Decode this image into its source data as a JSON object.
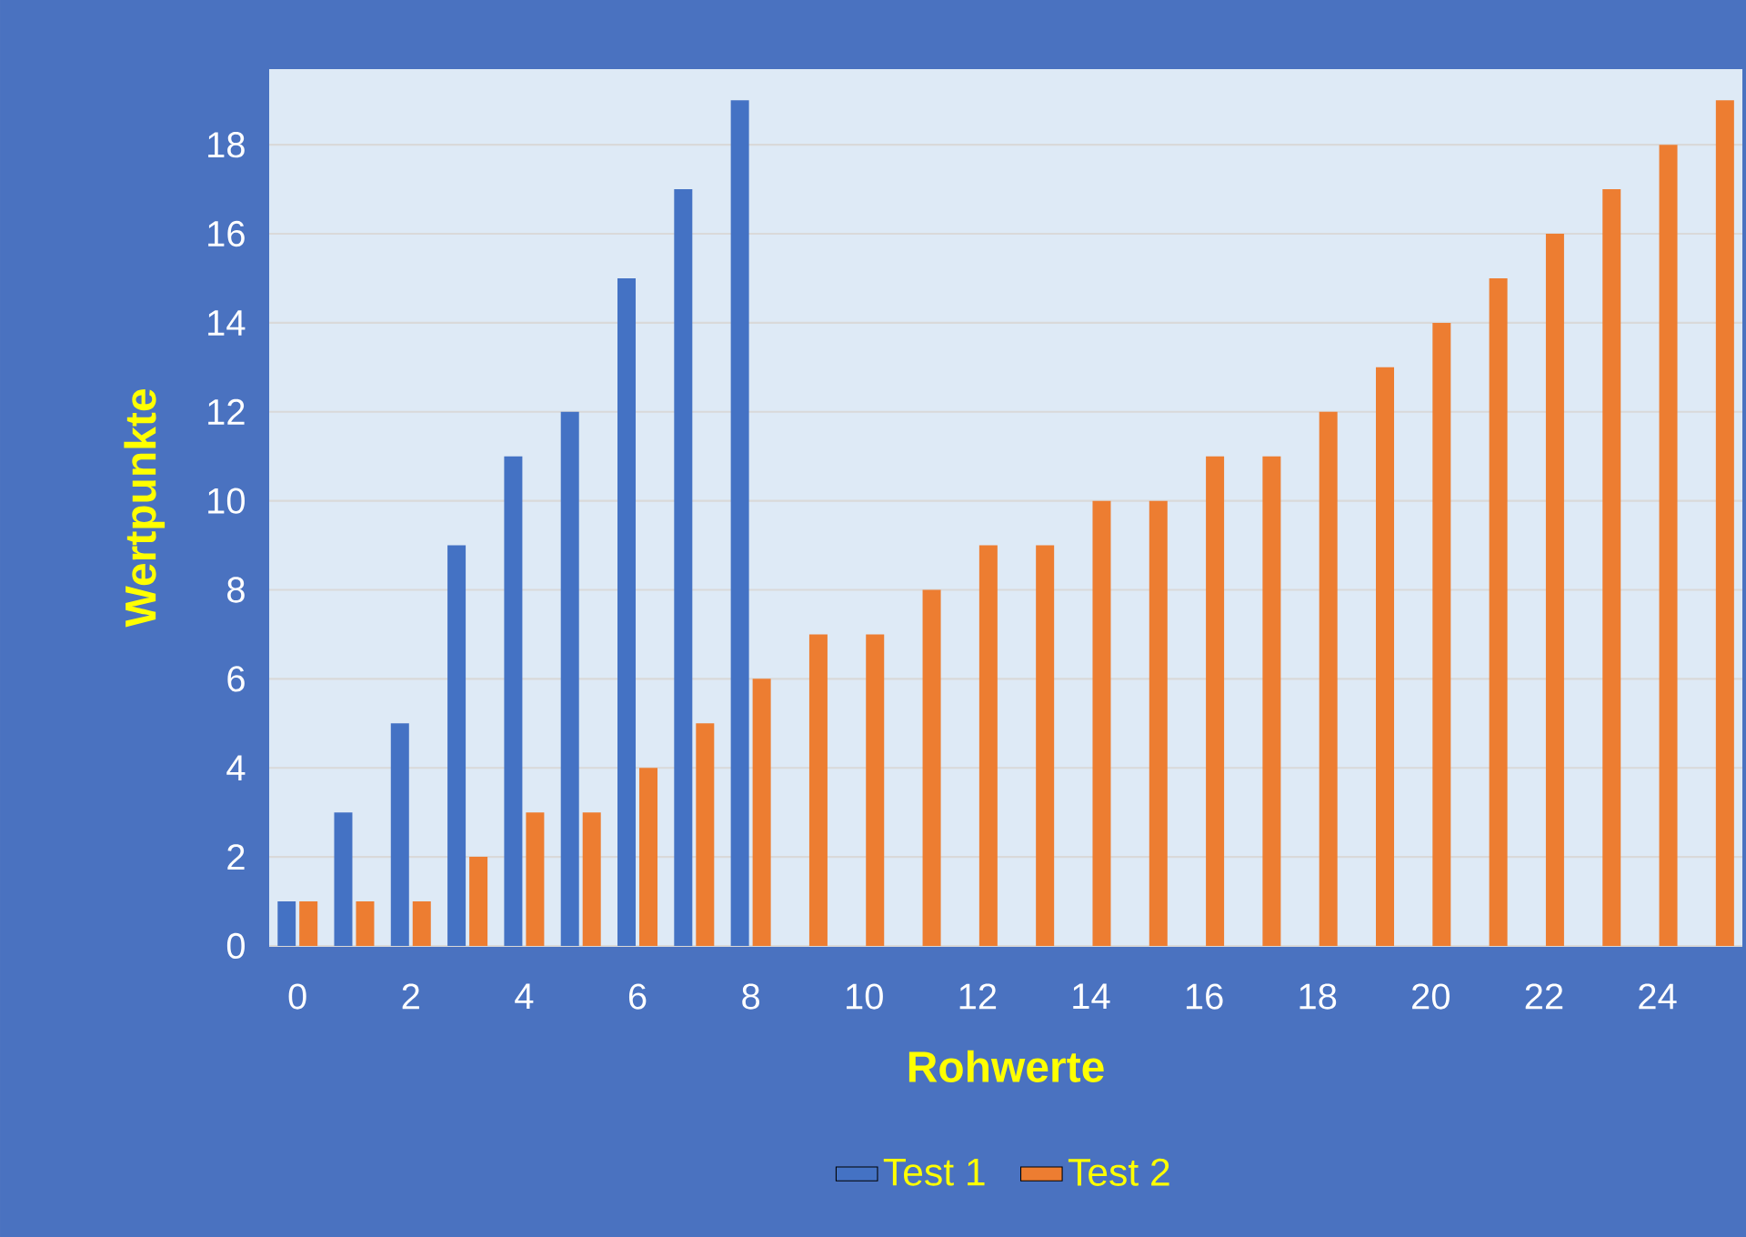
{
  "chart_data": {
    "type": "bar",
    "xlabel": "Rohwerte",
    "ylabel": "Wertpunkte",
    "categories": [
      "0",
      null,
      "2",
      null,
      "4",
      null,
      "6",
      null,
      "8",
      null,
      "10",
      null,
      "12",
      null,
      "14",
      null,
      "16",
      null,
      "18",
      null,
      "20",
      null,
      "22",
      null,
      "24",
      null
    ],
    "series": [
      {
        "name": "Test 1",
        "color": "#4472c4",
        "values": [
          1,
          3,
          5,
          9,
          11,
          12,
          15,
          17,
          19,
          null,
          null,
          null,
          null,
          null,
          null,
          null,
          null,
          null,
          null,
          null,
          null,
          null,
          null,
          null,
          null,
          null
        ]
      },
      {
        "name": "Test 2",
        "color": "#ed7d31",
        "values": [
          1,
          1,
          1,
          2,
          3,
          3,
          4,
          5,
          6,
          7,
          7,
          8,
          9,
          9,
          10,
          10,
          11,
          11,
          12,
          13,
          14,
          15,
          16,
          17,
          18,
          19
        ]
      }
    ],
    "ylim": [
      0,
      19.7
    ],
    "yticks": [
      0,
      2,
      4,
      6,
      8,
      10,
      12,
      14,
      16,
      18
    ],
    "grid": "y",
    "legend": "bottom"
  }
}
